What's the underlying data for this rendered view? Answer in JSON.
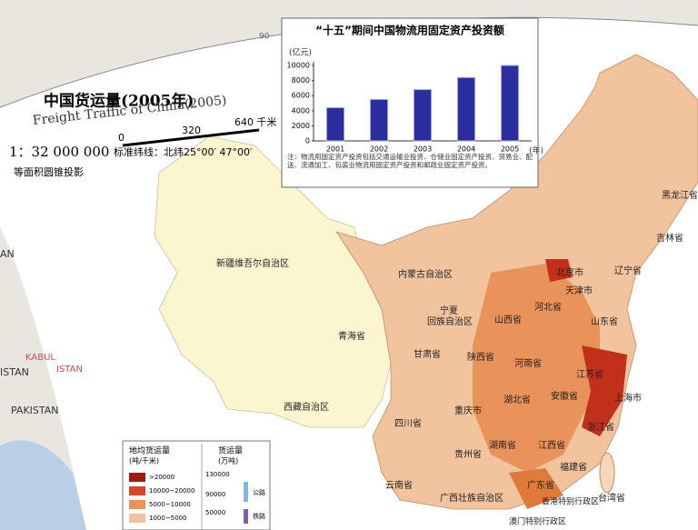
{
  "header": {
    "title_cn": "中国货运量(2005年)",
    "title_en": "Freight Traffic of China(2005)",
    "scale": "1：32 000 000",
    "scale_ticks": [
      "0",
      "320",
      "640 千米"
    ],
    "projection": "等面积圆锥投影",
    "standard_parallels": "标准纬线：北纬25°00′ 47°00′"
  },
  "chart_data": {
    "type": "bar",
    "title": "“十五”期间中国物流用固定资产投资额",
    "y_unit": "(亿元)",
    "x_unit": "(年)",
    "categories": [
      "2001",
      "2002",
      "2003",
      "2004",
      "2005"
    ],
    "values": [
      4400,
      5500,
      6800,
      8400,
      10000
    ],
    "color": "#2b2f9e",
    "ylim": [
      0,
      10000
    ],
    "yticks": [
      0,
      2000,
      4000,
      6000,
      8000,
      10000
    ],
    "note": "注：物流用固定资产投资包括交通运输业投资、仓储业固定资产投资、贸易业、配送、流通加工、包装业物流用固定资产投资和邮政业固定资产投资。"
  },
  "regions": [
    "新疆维吾尔自治区",
    "内蒙古自治区",
    "黑龙江省",
    "吉林省",
    "辽宁省",
    "北京市",
    "天津市",
    "河北省",
    "山西省",
    "山东省",
    "宁夏",
    "回族自治区",
    "甘肃省",
    "青海省",
    "陕西省",
    "河南省",
    "江苏省",
    "安徽省",
    "上海市",
    "浙江省",
    "湖北省",
    "重庆市",
    "四川省",
    "西藏自治区",
    "贵州省",
    "湖南省",
    "江西省",
    "福建省",
    "云南省",
    "广西壮族自治区",
    "广东省",
    "香港特别行政区",
    "澳门特别行政区",
    "台湾省"
  ],
  "neighbors": [
    "AN",
    "KABUL",
    "ISTAN",
    "ISTAN",
    "PAKISTAN"
  ],
  "grid_label": "90",
  "legend": {
    "density_title": "地均货运量",
    "density_unit": "(吨/千米)",
    "density_classes": [
      ">20000",
      "10000~20000",
      "5000~10000",
      "1000~5000"
    ],
    "volume_title": "货运量",
    "volume_unit": "(万吨)",
    "volume_classes": [
      "130000",
      "90000",
      "50000"
    ],
    "modes": [
      "公路",
      "铁路"
    ]
  }
}
